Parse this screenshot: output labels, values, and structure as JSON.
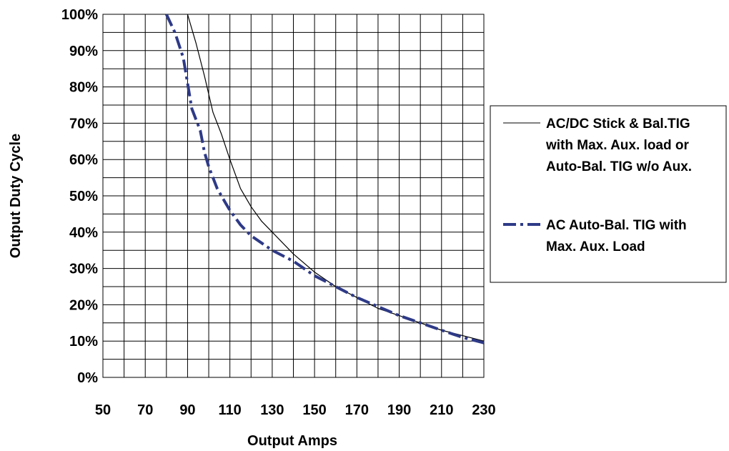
{
  "chart_data": {
    "type": "line",
    "title": "",
    "xlabel": "Output Amps",
    "ylabel": "Output Duty Cycle",
    "xlim": [
      50,
      230
    ],
    "ylim": [
      0,
      100
    ],
    "x_ticks": [
      "50",
      "70",
      "90",
      "110",
      "130",
      "150",
      "170",
      "190",
      "210",
      "230"
    ],
    "y_ticks": [
      "0%",
      "10%",
      "20%",
      "30%",
      "40%",
      "50%",
      "60%",
      "70%",
      "80%",
      "90%",
      "100%"
    ],
    "grid": true,
    "legend_position": "right",
    "series": [
      {
        "name": "AC/DC Stick & Bal.TIG with Max. Aux. load  or Auto-Bal. TIG w/o Aux.",
        "legend_lines": [
          "AC/DC Stick & Bal.TIG",
          "with Max. Aux. load  or",
          "Auto-Bal. TIG w/o Aux."
        ],
        "style": "solid",
        "color": "#000000",
        "x": [
          90,
          94,
          98,
          102,
          106,
          110,
          115,
          120,
          125,
          130,
          140,
          150,
          160,
          170,
          180,
          190,
          200,
          210,
          220,
          230
        ],
        "y": [
          100,
          92,
          83,
          73,
          67,
          60,
          52,
          47,
          43,
          40,
          34,
          29,
          25,
          22,
          19,
          17,
          15,
          13,
          11.5,
          10
        ]
      },
      {
        "name": "AC Auto-Bal. TIG with Max. Aux. Load",
        "legend_lines": [
          "AC Auto-Bal. TIG with",
          "Max. Aux. Load"
        ],
        "style": "dashed",
        "color": "#2e3a87",
        "x": [
          80,
          84,
          88,
          92,
          96,
          98,
          100,
          102,
          104,
          106,
          108,
          110,
          115,
          120,
          130,
          140,
          150,
          160,
          170,
          180,
          190,
          200,
          210,
          220,
          230
        ],
        "y": [
          100,
          95,
          88,
          74,
          68,
          62,
          58,
          55,
          52,
          50,
          48,
          46,
          42,
          39,
          35,
          32,
          28,
          25,
          22,
          19.5,
          17,
          15,
          13,
          11,
          9.5
        ]
      }
    ]
  }
}
